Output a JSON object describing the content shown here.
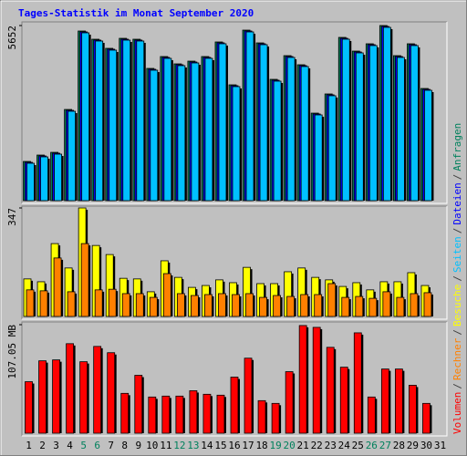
{
  "chart_data": [
    {
      "type": "bar",
      "title": "Tages-Statistik im Monat September 2020",
      "legend_separator": "/",
      "ylim": [
        0,
        5652
      ],
      "yticks": [
        5652
      ],
      "series": [
        {
          "name": "Anfragen",
          "color": "#00805c",
          "values": [
            1265,
            1471,
            1559,
            2943,
            5475,
            5210,
            4916,
            5239,
            5210,
            4268,
            4651,
            4415,
            4503,
            4651,
            5122,
            3738,
            5504,
            5092,
            3915,
            4680,
            4386,
            2825,
            3444,
            5269,
            4827,
            5063,
            5652,
            4680,
            5063,
            3620,
            null
          ]
        },
        {
          "name": "Dateien",
          "color": "#0000ff",
          "values": [
            1237,
            1443,
            1531,
            2915,
            5447,
            5182,
            4888,
            5211,
            5182,
            4240,
            4623,
            4387,
            4475,
            4623,
            5094,
            3710,
            5476,
            5064,
            3887,
            4652,
            4358,
            2797,
            3416,
            5241,
            4799,
            5035,
            5624,
            4652,
            5035,
            3592,
            null
          ]
        },
        {
          "name": "Seiten",
          "color": "#00c0ff",
          "values": [
            1207,
            1413,
            1501,
            2885,
            5417,
            5152,
            4858,
            5181,
            5152,
            4210,
            4593,
            4357,
            4445,
            4593,
            5064,
            3680,
            5446,
            5034,
            3857,
            4622,
            4328,
            2767,
            3386,
            5211,
            4769,
            5005,
            5594,
            4622,
            5005,
            3562,
            null
          ]
        }
      ]
    },
    {
      "type": "bar",
      "ylim": [
        0,
        347
      ],
      "yticks": [
        347
      ],
      "series": [
        {
          "name": "Besuche",
          "color": "#ffff00",
          "values": [
            120,
            111,
            233,
            155,
            347,
            227,
            198,
            122,
            120,
            79,
            178,
            125,
            93,
            99,
            117,
            108,
            157,
            105,
            105,
            143,
            155,
            125,
            117,
            96,
            108,
            85,
            111,
            111,
            140,
            99,
            null
          ]
        },
        {
          "name": "Rechner",
          "color": "#ff8000",
          "values": [
            85,
            82,
            187,
            79,
            233,
            85,
            87,
            73,
            73,
            61,
            137,
            73,
            67,
            70,
            73,
            70,
            73,
            61,
            67,
            64,
            70,
            70,
            105,
            61,
            64,
            58,
            79,
            61,
            73,
            76,
            null
          ]
        }
      ]
    },
    {
      "type": "bar",
      "ylim": [
        0,
        107.05
      ],
      "yticks": [
        {
          "value": 107.05,
          "label": "107.05 MB"
        }
      ],
      "categories": [
        "1",
        "2",
        "3",
        "4",
        "5",
        "6",
        "7",
        "8",
        "9",
        "10",
        "11",
        "12",
        "13",
        "14",
        "15",
        "16",
        "17",
        "18",
        "19",
        "20",
        "21",
        "22",
        "23",
        "24",
        "25",
        "26",
        "27",
        "28",
        "29",
        "30",
        "31"
      ],
      "label_colors": [
        "#000000",
        "#000000",
        "#000000",
        "#000000",
        "#00805c",
        "#00805c",
        "#000000",
        "#000000",
        "#000000",
        "#000000",
        "#000000",
        "#00805c",
        "#00805c",
        "#000000",
        "#000000",
        "#000000",
        "#000000",
        "#000000",
        "#00805c",
        "#00805c",
        "#000000",
        "#000000",
        "#000000",
        "#000000",
        "#000000",
        "#00805c",
        "#00805c",
        "#000000",
        "#000000",
        "#000000",
        "#000000"
      ],
      "series": [
        {
          "name": "Volumen",
          "color": "#ff0000",
          "values": [
            50.8,
            71.4,
            72.3,
            88.3,
            70.5,
            85.6,
            79.4,
            39.3,
            57.1,
            35.7,
            36.6,
            36.6,
            41.9,
            38.4,
            37.5,
            55.3,
            74.0,
            32.1,
            29.4,
            60.7,
            106.2,
            104.4,
            84.7,
            65.1,
            99.0,
            35.7,
            63.3,
            63.3,
            47.3,
            29.4,
            null
          ]
        }
      ]
    }
  ]
}
